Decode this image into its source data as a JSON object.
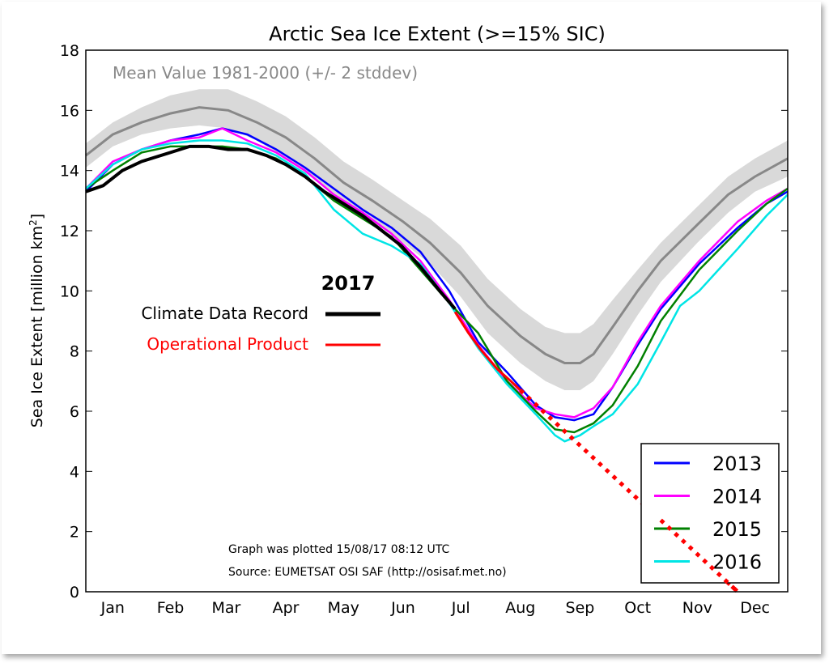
{
  "chart_data": {
    "type": "line",
    "title": "Arctic Sea Ice Extent (>=15% SIC)",
    "ylabel": "Sea Ice Extent [million km",
    "ylabel_sup": "2",
    "ylabel_close": "]",
    "ylim": [
      0,
      18
    ],
    "xlim": [
      1,
      366
    ],
    "yticks": [
      0,
      2,
      4,
      6,
      8,
      10,
      12,
      14,
      16,
      18
    ],
    "month_labels": [
      "Jan",
      "Feb",
      "Mar",
      "Apr",
      "May",
      "Jun",
      "Jul",
      "Aug",
      "Sep",
      "Oct",
      "Nov",
      "Dec"
    ],
    "month_label_days": [
      15,
      45,
      74,
      105,
      135,
      166,
      196,
      227,
      258,
      288,
      319,
      349
    ],
    "grid": false,
    "mean_label": "Mean Value 1981-2000 (+/- 2 stddev)",
    "mean_color": "#888888",
    "band_color": "#d9d9d9",
    "mean": {
      "x": [
        1,
        15,
        30,
        45,
        60,
        75,
        90,
        105,
        120,
        135,
        150,
        166,
        180,
        196,
        210,
        227,
        240,
        250,
        258,
        265,
        275,
        288,
        300,
        319,
        335,
        349,
        366
      ],
      "y": [
        14.5,
        15.2,
        15.6,
        15.9,
        16.1,
        16.0,
        15.6,
        15.1,
        14.4,
        13.6,
        13.0,
        12.3,
        11.6,
        10.6,
        9.5,
        8.5,
        7.9,
        7.6,
        7.6,
        7.9,
        8.8,
        10.0,
        11.0,
        12.2,
        13.2,
        13.8,
        14.4
      ],
      "upper": [
        14.9,
        15.6,
        16.1,
        16.5,
        16.7,
        16.7,
        16.3,
        15.8,
        15.1,
        14.3,
        13.7,
        13.0,
        12.4,
        11.5,
        10.4,
        9.4,
        8.8,
        8.6,
        8.6,
        8.9,
        9.7,
        10.7,
        11.6,
        12.8,
        13.8,
        14.4,
        15.0
      ],
      "lower": [
        14.1,
        14.8,
        15.2,
        15.4,
        15.5,
        15.4,
        15.0,
        14.4,
        13.7,
        12.9,
        12.3,
        11.6,
        10.9,
        9.8,
        8.6,
        7.6,
        7.0,
        6.7,
        6.7,
        7.0,
        7.9,
        9.2,
        10.3,
        11.6,
        12.6,
        13.3,
        13.8
      ]
    },
    "series": [
      {
        "name": "2013",
        "color": "#0000ff",
        "x": [
          1,
          15,
          30,
          45,
          60,
          72,
          85,
          100,
          115,
          130,
          145,
          160,
          175,
          190,
          205,
          220,
          235,
          245,
          255,
          265,
          275,
          288,
          300,
          320,
          340,
          355,
          366
        ],
        "y": [
          13.3,
          14.2,
          14.7,
          15.0,
          15.2,
          15.4,
          15.2,
          14.7,
          14.1,
          13.4,
          12.7,
          12.1,
          11.3,
          10.0,
          8.3,
          7.3,
          6.2,
          5.8,
          5.7,
          5.9,
          6.8,
          8.2,
          9.4,
          10.9,
          12.1,
          12.9,
          13.3
        ]
      },
      {
        "name": "2014",
        "color": "#ff00ff",
        "x": [
          1,
          15,
          30,
          45,
          60,
          72,
          85,
          100,
          115,
          130,
          145,
          160,
          175,
          190,
          205,
          220,
          235,
          245,
          255,
          265,
          275,
          288,
          300,
          320,
          340,
          355,
          366
        ],
        "y": [
          13.4,
          14.3,
          14.7,
          15.0,
          15.1,
          15.4,
          15.0,
          14.6,
          14.0,
          13.2,
          12.6,
          11.9,
          11.0,
          9.7,
          8.2,
          7.0,
          6.1,
          5.9,
          5.8,
          6.1,
          6.8,
          8.3,
          9.5,
          11.0,
          12.3,
          13.0,
          13.4
        ]
      },
      {
        "name": "2015",
        "color": "#008000",
        "x": [
          1,
          15,
          30,
          45,
          60,
          72,
          85,
          100,
          115,
          130,
          145,
          160,
          175,
          190,
          205,
          220,
          235,
          245,
          255,
          265,
          275,
          288,
          300,
          320,
          340,
          355,
          366
        ],
        "y": [
          13.4,
          14.0,
          14.6,
          14.8,
          14.8,
          14.8,
          14.7,
          14.4,
          13.8,
          13.0,
          12.4,
          11.8,
          10.7,
          9.6,
          8.6,
          7.0,
          6.0,
          5.4,
          5.3,
          5.6,
          6.2,
          7.5,
          9.0,
          10.7,
          12.0,
          12.9,
          13.4
        ]
      },
      {
        "name": "2016",
        "color": "#00e5e5",
        "x": [
          1,
          15,
          30,
          45,
          60,
          72,
          85,
          100,
          115,
          130,
          145,
          160,
          175,
          190,
          205,
          220,
          235,
          245,
          250,
          258,
          265,
          275,
          288,
          300,
          310,
          320,
          340,
          355,
          366
        ],
        "y": [
          13.4,
          14.2,
          14.7,
          14.9,
          15.0,
          15.0,
          14.9,
          14.5,
          13.9,
          12.7,
          11.9,
          11.5,
          10.9,
          9.6,
          8.1,
          6.9,
          5.9,
          5.2,
          5.0,
          5.2,
          5.5,
          5.9,
          6.9,
          8.3,
          9.5,
          10.0,
          11.4,
          12.5,
          13.2
        ]
      }
    ],
    "series_2017": {
      "label": "2017",
      "cdr": {
        "name": "Climate Data Record",
        "color": "#000000",
        "x": [
          1,
          10,
          20,
          30,
          45,
          55,
          65,
          75,
          85,
          95,
          105,
          115,
          125,
          135,
          145,
          155,
          165,
          175,
          185,
          193
        ],
        "y": [
          13.3,
          13.5,
          14.0,
          14.3,
          14.6,
          14.8,
          14.8,
          14.7,
          14.7,
          14.5,
          14.2,
          13.8,
          13.3,
          12.9,
          12.5,
          12.0,
          11.5,
          10.8,
          10.0,
          9.4
        ]
      },
      "op": {
        "name": "Operational Product",
        "color": "#ff0000",
        "x": [
          193,
          200,
          207,
          215,
          222,
          227
        ],
        "y": [
          9.3,
          8.6,
          8.0,
          7.4,
          7.0,
          6.7
        ]
      }
    },
    "trend_line": {
      "color": "#ff0000",
      "style": "dotted",
      "x": [
        227,
        340
      ],
      "y": [
        6.7,
        0
      ]
    },
    "legend": {
      "placement": "bottom-right"
    },
    "annotation_lines": [
      "Graph was plotted 15/08/17 08:12 UTC",
      "Source: EUMETSAT OSI SAF (http://osisaf.met.no)"
    ]
  }
}
